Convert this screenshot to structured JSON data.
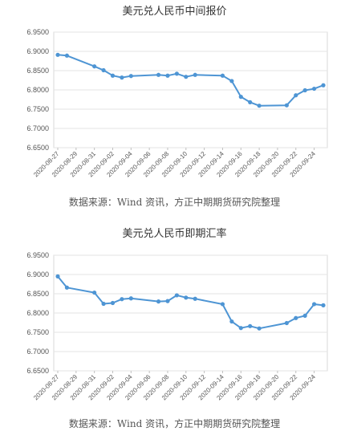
{
  "chart_data": [
    {
      "type": "line",
      "title": "美元兑人民币中间报价",
      "source": "数据来源：Wind 资讯，方正中期期货研究院整理",
      "color": "#4e95d4",
      "ylim": [
        6.65,
        6.95
      ],
      "yticks": [
        "6.6500",
        "6.7000",
        "6.7500",
        "6.8000",
        "6.8500",
        "6.9000",
        "6.9500"
      ],
      "x_labels": [
        "2020-08-27",
        "2020-08-29",
        "2020-08-31",
        "2020-09-02",
        "2020-09-04",
        "2020-09-06",
        "2020-09-08",
        "2020-09-10",
        "2020-09-12",
        "2020-09-14",
        "2020-09-16",
        "2020-09-18",
        "2020-09-20",
        "2020-09-22",
        "2020-09-24"
      ],
      "x_range": [
        "2020-08-27",
        "2020-09-25"
      ],
      "points": [
        {
          "x": "2020-08-27",
          "y": 6.891
        },
        {
          "x": "2020-08-28",
          "y": 6.889
        },
        {
          "x": "2020-08-31",
          "y": 6.861
        },
        {
          "x": "2020-09-01",
          "y": 6.851
        },
        {
          "x": "2020-09-02",
          "y": 6.837
        },
        {
          "x": "2020-09-03",
          "y": 6.832
        },
        {
          "x": "2020-09-04",
          "y": 6.836
        },
        {
          "x": "2020-09-07",
          "y": 6.839
        },
        {
          "x": "2020-09-08",
          "y": 6.837
        },
        {
          "x": "2020-09-09",
          "y": 6.842
        },
        {
          "x": "2020-09-10",
          "y": 6.834
        },
        {
          "x": "2020-09-11",
          "y": 6.839
        },
        {
          "x": "2020-09-14",
          "y": 6.837
        },
        {
          "x": "2020-09-15",
          "y": 6.823
        },
        {
          "x": "2020-09-16",
          "y": 6.782
        },
        {
          "x": "2020-09-17",
          "y": 6.768
        },
        {
          "x": "2020-09-18",
          "y": 6.759
        },
        {
          "x": "2020-09-21",
          "y": 6.76
        },
        {
          "x": "2020-09-22",
          "y": 6.786
        },
        {
          "x": "2020-09-23",
          "y": 6.799
        },
        {
          "x": "2020-09-24",
          "y": 6.803
        },
        {
          "x": "2020-09-25",
          "y": 6.812
        }
      ]
    },
    {
      "type": "line",
      "title": "美元兑人民币即期汇率",
      "source": "数据来源：Wind 资讯，方正中期期货研究院整理",
      "color": "#4e95d4",
      "ylim": [
        6.65,
        6.95
      ],
      "yticks": [
        "6.6500",
        "6.7000",
        "6.7500",
        "6.8000",
        "6.8500",
        "6.9000",
        "6.9500"
      ],
      "x_labels": [
        "2020-08-27",
        "2020-08-29",
        "2020-08-31",
        "2020-09-02",
        "2020-09-04",
        "2020-09-06",
        "2020-09-08",
        "2020-09-10",
        "2020-09-12",
        "2020-09-14",
        "2020-09-16",
        "2020-09-18",
        "2020-09-20",
        "2020-09-22",
        "2020-09-24"
      ],
      "x_range": [
        "2020-08-27",
        "2020-09-25"
      ],
      "points": [
        {
          "x": "2020-08-27",
          "y": 6.895
        },
        {
          "x": "2020-08-28",
          "y": 6.866
        },
        {
          "x": "2020-08-31",
          "y": 6.853
        },
        {
          "x": "2020-09-01",
          "y": 6.824
        },
        {
          "x": "2020-09-02",
          "y": 6.826
        },
        {
          "x": "2020-09-03",
          "y": 6.836
        },
        {
          "x": "2020-09-04",
          "y": 6.838
        },
        {
          "x": "2020-09-07",
          "y": 6.83
        },
        {
          "x": "2020-09-08",
          "y": 6.831
        },
        {
          "x": "2020-09-09",
          "y": 6.846
        },
        {
          "x": "2020-09-10",
          "y": 6.84
        },
        {
          "x": "2020-09-11",
          "y": 6.837
        },
        {
          "x": "2020-09-14",
          "y": 6.823
        },
        {
          "x": "2020-09-15",
          "y": 6.778
        },
        {
          "x": "2020-09-16",
          "y": 6.761
        },
        {
          "x": "2020-09-17",
          "y": 6.766
        },
        {
          "x": "2020-09-18",
          "y": 6.76
        },
        {
          "x": "2020-09-21",
          "y": 6.774
        },
        {
          "x": "2020-09-22",
          "y": 6.787
        },
        {
          "x": "2020-09-23",
          "y": 6.793
        },
        {
          "x": "2020-09-24",
          "y": 6.823
        },
        {
          "x": "2020-09-25",
          "y": 6.82
        }
      ]
    }
  ]
}
